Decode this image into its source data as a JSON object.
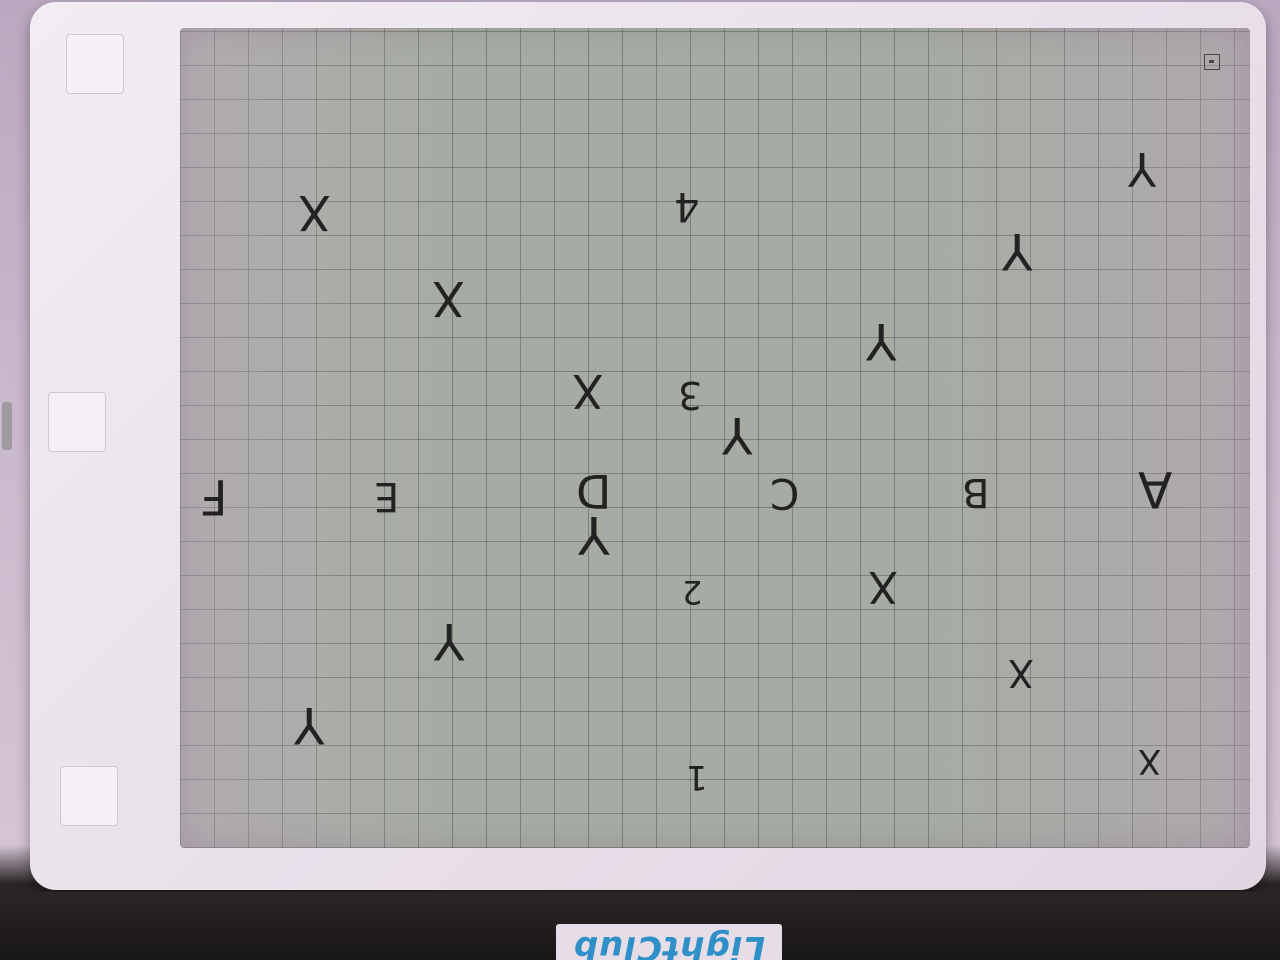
{
  "device": {
    "brand": "LightClub"
  },
  "screen": {
    "marks": [
      {
        "id": "x-1",
        "text": "X"
      },
      {
        "id": "x-2",
        "text": "X"
      },
      {
        "id": "x-3",
        "text": "X"
      },
      {
        "id": "x-4",
        "text": "X"
      },
      {
        "id": "x-5",
        "text": "X"
      },
      {
        "id": "x-6",
        "text": "X"
      },
      {
        "id": "y-1",
        "text": "Y"
      },
      {
        "id": "y-2",
        "text": "Y"
      },
      {
        "id": "y-3",
        "text": "Y"
      },
      {
        "id": "y-4",
        "text": "Y"
      },
      {
        "id": "y-5",
        "text": "Y"
      },
      {
        "id": "y-6",
        "text": "Y"
      },
      {
        "id": "y-7",
        "text": "Y"
      },
      {
        "id": "num-1",
        "text": "1"
      },
      {
        "id": "num-2",
        "text": "2"
      },
      {
        "id": "num-3",
        "text": "3"
      },
      {
        "id": "num-4",
        "text": "4"
      },
      {
        "id": "let-a",
        "text": "A"
      },
      {
        "id": "let-b",
        "text": "B"
      },
      {
        "id": "let-c",
        "text": "C"
      },
      {
        "id": "let-d",
        "text": "D"
      },
      {
        "id": "let-e",
        "text": "E"
      },
      {
        "id": "let-f",
        "text": "F"
      }
    ]
  }
}
